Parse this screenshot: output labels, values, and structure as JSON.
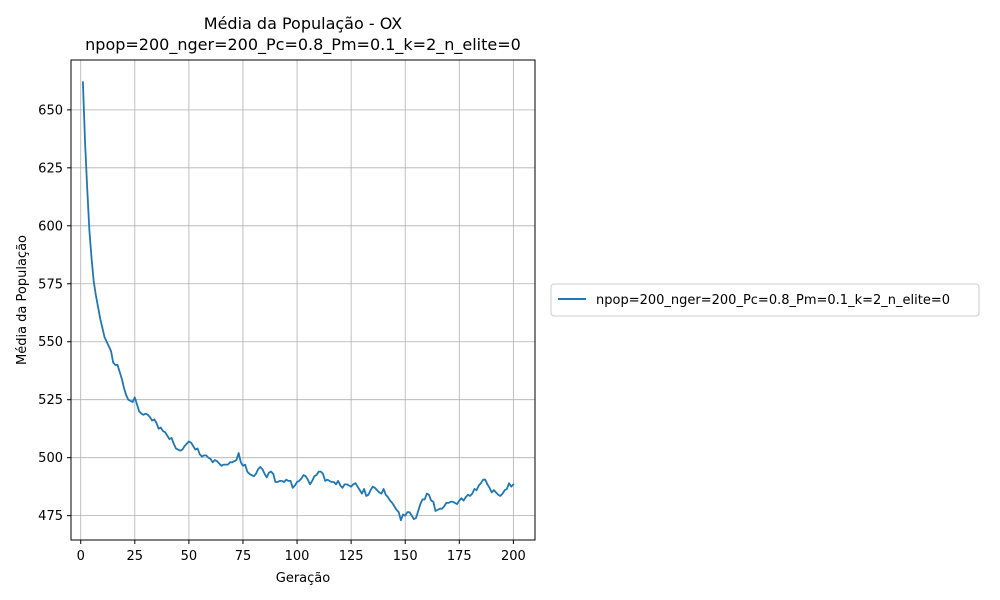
{
  "chart_data": {
    "type": "line",
    "title": "Média da População - OX",
    "subtitle": "npop=200_nger=200_Pc=0.8_Pm=0.1_k=2_n_elite=0",
    "xlabel": "Geração",
    "ylabel": "Média da População",
    "xlim": [
      -4.5,
      210
    ],
    "ylim": [
      464.5,
      671.5
    ],
    "xticks": [
      0,
      25,
      50,
      75,
      100,
      125,
      150,
      175,
      200
    ],
    "yticks": [
      475,
      500,
      525,
      550,
      575,
      600,
      625,
      650
    ],
    "grid": true,
    "legend_position": "right",
    "series": [
      {
        "name": "npop=200_nger=200_Pc=0.8_Pm=0.1_k=2_n_elite=0",
        "color": "#1f77b4",
        "points": [
          [
            1,
            662
          ],
          [
            2,
            636
          ],
          [
            3,
            616
          ],
          [
            4,
            598
          ],
          [
            5,
            586
          ],
          [
            6,
            576
          ],
          [
            7,
            570
          ],
          [
            8,
            565
          ],
          [
            9,
            560
          ],
          [
            10,
            556
          ],
          [
            11,
            552
          ],
          [
            12,
            550
          ],
          [
            13,
            548
          ],
          [
            14,
            546
          ],
          [
            15,
            541
          ],
          [
            16,
            540
          ],
          [
            17,
            540
          ],
          [
            18,
            537
          ],
          [
            19,
            534
          ],
          [
            20,
            530
          ],
          [
            21,
            527
          ],
          [
            22,
            525
          ],
          [
            23,
            524.5
          ],
          [
            24,
            524
          ],
          [
            25,
            526
          ],
          [
            26,
            523
          ],
          [
            27,
            520
          ],
          [
            28,
            519
          ],
          [
            29,
            518.5
          ],
          [
            30,
            519
          ],
          [
            31,
            518.5
          ],
          [
            32,
            517.5
          ],
          [
            33,
            516
          ],
          [
            34,
            516.5
          ],
          [
            35,
            515
          ],
          [
            36,
            512.5
          ],
          [
            37,
            513
          ],
          [
            38,
            511.5
          ],
          [
            39,
            511
          ],
          [
            40,
            509.5
          ],
          [
            41,
            508
          ],
          [
            42,
            508.5
          ],
          [
            43,
            506
          ],
          [
            44,
            504
          ],
          [
            45,
            503.5
          ],
          [
            46,
            503
          ],
          [
            47,
            503.5
          ],
          [
            48,
            505
          ],
          [
            49,
            506
          ],
          [
            50,
            507
          ],
          [
            51,
            506.5
          ],
          [
            52,
            505
          ],
          [
            53,
            503.5
          ],
          [
            54,
            504
          ],
          [
            55,
            501.5
          ],
          [
            56,
            500.5
          ],
          [
            57,
            501
          ],
          [
            58,
            501
          ],
          [
            59,
            500
          ],
          [
            60,
            499.5
          ],
          [
            61,
            498
          ],
          [
            62,
            499
          ],
          [
            63,
            498.5
          ],
          [
            64,
            497.5
          ],
          [
            65,
            496.5
          ],
          [
            66,
            497
          ],
          [
            67,
            497
          ],
          [
            68,
            497
          ],
          [
            69,
            498
          ],
          [
            70,
            498
          ],
          [
            71,
            498.5
          ],
          [
            72,
            499
          ],
          [
            73,
            502
          ],
          [
            74,
            498
          ],
          [
            75,
            496.5
          ],
          [
            76,
            497
          ],
          [
            77,
            494
          ],
          [
            78,
            493
          ],
          [
            79,
            492.5
          ],
          [
            80,
            492
          ],
          [
            81,
            493
          ],
          [
            82,
            495
          ],
          [
            83,
            496
          ],
          [
            84,
            495
          ],
          [
            85,
            493
          ],
          [
            86,
            491.5
          ],
          [
            87,
            493.5
          ],
          [
            88,
            494
          ],
          [
            89,
            493
          ],
          [
            90,
            489.5
          ],
          [
            91,
            489.5
          ],
          [
            92,
            490
          ],
          [
            93,
            490
          ],
          [
            94,
            489.5
          ],
          [
            95,
            490.5
          ],
          [
            96,
            490
          ],
          [
            97,
            490
          ],
          [
            98,
            487
          ],
          [
            99,
            488
          ],
          [
            100,
            489.5
          ],
          [
            101,
            490
          ],
          [
            102,
            491
          ],
          [
            103,
            492.5
          ],
          [
            104,
            492
          ],
          [
            105,
            490.5
          ],
          [
            106,
            488.5
          ],
          [
            107,
            490
          ],
          [
            108,
            492
          ],
          [
            109,
            492.5
          ],
          [
            110,
            494
          ],
          [
            111,
            494
          ],
          [
            112,
            493
          ],
          [
            113,
            490
          ],
          [
            114,
            490.5
          ],
          [
            115,
            490
          ],
          [
            116,
            489.5
          ],
          [
            117,
            489.5
          ],
          [
            118,
            488.5
          ],
          [
            119,
            490
          ],
          [
            120,
            488
          ],
          [
            121,
            487
          ],
          [
            122,
            488.5
          ],
          [
            123,
            488.5
          ],
          [
            124,
            488
          ],
          [
            125,
            487.5
          ],
          [
            126,
            488.5
          ],
          [
            127,
            489
          ],
          [
            128,
            487.5
          ],
          [
            129,
            486
          ],
          [
            130,
            484.5
          ],
          [
            131,
            486.5
          ],
          [
            132,
            483.5
          ],
          [
            133,
            484
          ],
          [
            134,
            486
          ],
          [
            135,
            487.5
          ],
          [
            136,
            487
          ],
          [
            137,
            486
          ],
          [
            138,
            485
          ],
          [
            139,
            484.5
          ],
          [
            140,
            486.5
          ],
          [
            141,
            484
          ],
          [
            142,
            483
          ],
          [
            143,
            481.5
          ],
          [
            144,
            480.5
          ],
          [
            145,
            479
          ],
          [
            146,
            477.5
          ],
          [
            147,
            476.5
          ],
          [
            148,
            473
          ],
          [
            149,
            475.5
          ],
          [
            150,
            475
          ],
          [
            151,
            476.5
          ],
          [
            152,
            476.5
          ],
          [
            153,
            475
          ],
          [
            154,
            473.5
          ],
          [
            155,
            474
          ],
          [
            156,
            477
          ],
          [
            157,
            480
          ],
          [
            158,
            482
          ],
          [
            159,
            482
          ],
          [
            160,
            484.5
          ],
          [
            161,
            484
          ],
          [
            162,
            481.5
          ],
          [
            163,
            481
          ],
          [
            164,
            477
          ],
          [
            165,
            477.5
          ],
          [
            166,
            478
          ],
          [
            167,
            478
          ],
          [
            168,
            479
          ],
          [
            169,
            480.5
          ],
          [
            170,
            480.5
          ],
          [
            171,
            481
          ],
          [
            172,
            481
          ],
          [
            173,
            480.5
          ],
          [
            174,
            480
          ],
          [
            175,
            481.5
          ],
          [
            176,
            482.5
          ],
          [
            177,
            481.5
          ],
          [
            178,
            483
          ],
          [
            179,
            484
          ],
          [
            180,
            483.5
          ],
          [
            181,
            484.5
          ],
          [
            182,
            486.5
          ],
          [
            183,
            486
          ],
          [
            184,
            488
          ],
          [
            185,
            489
          ],
          [
            186,
            490.5
          ],
          [
            187,
            490.5
          ],
          [
            188,
            488.5
          ],
          [
            189,
            487
          ],
          [
            190,
            485
          ],
          [
            191,
            486
          ],
          [
            192,
            485
          ],
          [
            193,
            484
          ],
          [
            194,
            483.5
          ],
          [
            195,
            484.5
          ],
          [
            196,
            486
          ],
          [
            197,
            486.5
          ],
          [
            198,
            489
          ],
          [
            199,
            487.5
          ],
          [
            200,
            488.5
          ]
        ]
      }
    ]
  }
}
